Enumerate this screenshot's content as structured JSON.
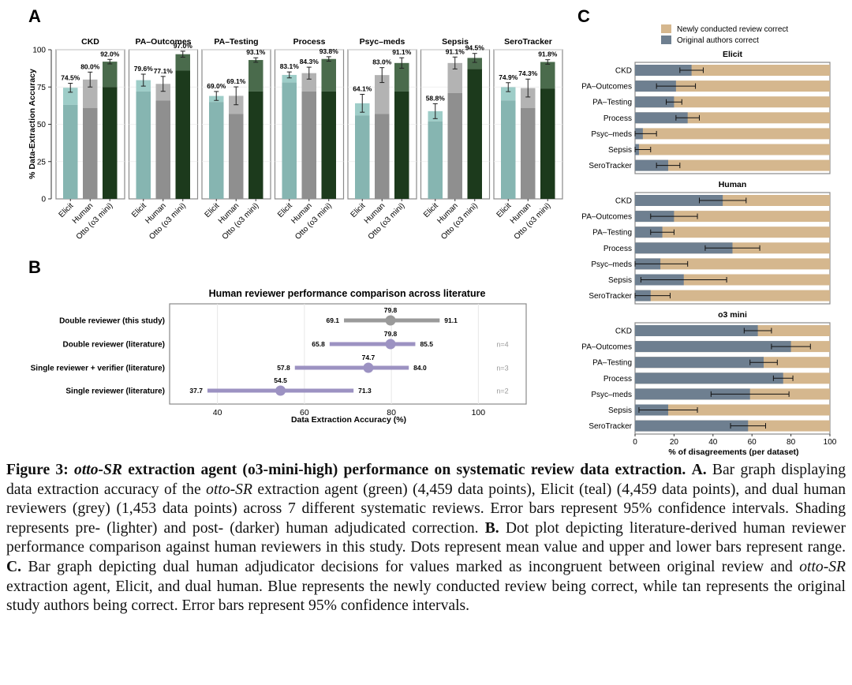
{
  "panel_labels": {
    "a": "A",
    "b": "B",
    "c": "C"
  },
  "colors": {
    "teal_light": "#9ecdc8",
    "teal_dark": "#86b5b1",
    "grey_light": "#b3b3b3",
    "grey_dark": "#8f8f8f",
    "green_light": "#4a6b4c",
    "green_dark": "#1c3a1c",
    "purple": "#9c92c2",
    "grey_dot": "#9a9a9a",
    "tan": "#d5b78e",
    "blue": "#6e7f90"
  },
  "chart_data": [
    {
      "type": "bar",
      "panel": "A",
      "ylabel": "% Data-Extraction Accuracy",
      "ylim": [
        0,
        100
      ],
      "yticks": [
        "0",
        "25",
        "50",
        "75",
        "100"
      ],
      "categories": [
        "Elicit",
        "Human",
        "Otto (o3 mini)"
      ],
      "facets": [
        {
          "name": "CKD",
          "labels": [
            "74.5%",
            "80.0%",
            "92.0%"
          ],
          "values": [
            74.5,
            80.0,
            92.0
          ],
          "pre": [
            63,
            61,
            75
          ],
          "err": [
            3,
            5,
            1.5
          ]
        },
        {
          "name": "PA–Outcomes",
          "labels": [
            "79.6%",
            "77.1%",
            "97.0%"
          ],
          "values": [
            79.6,
            77.1,
            97.0
          ],
          "pre": [
            72,
            66,
            86
          ],
          "err": [
            4,
            5,
            2
          ]
        },
        {
          "name": "PA–Testing",
          "labels": [
            "69.0%",
            "69.1%",
            "93.1%"
          ],
          "values": [
            69.0,
            69.1,
            93.1
          ],
          "pre": [
            65,
            57,
            72
          ],
          "err": [
            3,
            6,
            1.5
          ]
        },
        {
          "name": "Process",
          "labels": [
            "83.1%",
            "84.3%",
            "93.8%"
          ],
          "values": [
            83.1,
            84.3,
            93.8
          ],
          "pre": [
            78,
            72,
            72
          ],
          "err": [
            2,
            4,
            1.5
          ]
        },
        {
          "name": "Psyc–meds",
          "labels": [
            "64.1%",
            "83.0%",
            "91.1%"
          ],
          "values": [
            64.1,
            83.0,
            91.1
          ],
          "pre": [
            56,
            57,
            72
          ],
          "err": [
            6,
            5,
            3.5
          ]
        },
        {
          "name": "Sepsis",
          "labels": [
            "58.8%",
            "91.1%",
            "94.5%"
          ],
          "values": [
            58.8,
            91.1,
            94.5
          ],
          "pre": [
            52,
            71,
            87
          ],
          "err": [
            5,
            4,
            3
          ]
        },
        {
          "name": "SeroTracker",
          "labels": [
            "74.9%",
            "74.3%",
            "91.8%"
          ],
          "values": [
            74.9,
            74.3,
            91.8
          ],
          "pre": [
            66,
            61,
            74
          ],
          "err": [
            3,
            6,
            1.5
          ]
        }
      ]
    },
    {
      "type": "scatter",
      "panel": "B",
      "title": "Human reviewer performance comparison across literature",
      "xlabel": "Data Extraction Accuracy (%)",
      "xlim": [
        29,
        111
      ],
      "xticks": [
        40,
        60,
        80,
        100
      ],
      "rows": [
        {
          "label": "Double reviewer (this study)",
          "mean": 79.8,
          "low": 69.1,
          "high": 91.1,
          "mean_label": "79.8",
          "low_label": "69.1",
          "high_label": "91.1",
          "n": "",
          "color": "grey"
        },
        {
          "label": "Double reviewer (literature)",
          "mean": 79.8,
          "low": 65.8,
          "high": 85.5,
          "mean_label": "79.8",
          "low_label": "65.8",
          "high_label": "85.5",
          "n": "n=4",
          "color": "purple"
        },
        {
          "label": "Single reviewer + verifier (literature)",
          "mean": 74.7,
          "low": 57.8,
          "high": 84.0,
          "mean_label": "74.7",
          "low_label": "57.8",
          "high_label": "84.0",
          "n": "n=3",
          "color": "purple"
        },
        {
          "label": "Single reviewer (literature)",
          "mean": 54.5,
          "low": 37.7,
          "high": 71.3,
          "mean_label": "54.5",
          "low_label": "37.7",
          "high_label": "71.3",
          "n": "n=2",
          "color": "purple"
        }
      ]
    },
    {
      "type": "bar",
      "orientation": "horizontal",
      "stacked": true,
      "panel": "C",
      "legend": [
        "Newly conducted review correct",
        "Original authors correct"
      ],
      "xlabel": "% of disagreements (per dataset)",
      "xlim": [
        0,
        100
      ],
      "xticks": [
        "0",
        "20",
        "40",
        "60",
        "80",
        "100"
      ],
      "categories": [
        "CKD",
        "PA–Outcomes",
        "PA–Testing",
        "Process",
        "Psyc–meds",
        "Sepsis",
        "SeroTracker"
      ],
      "facets": [
        {
          "name": "Elicit",
          "original": [
            29,
            21,
            20,
            27,
            4,
            2,
            17
          ],
          "err": [
            6,
            10,
            4,
            6,
            7,
            6,
            6
          ]
        },
        {
          "name": "Human",
          "original": [
            45,
            20,
            14,
            50,
            13,
            25,
            8
          ],
          "err": [
            12,
            12,
            6,
            14,
            14,
            22,
            10
          ]
        },
        {
          "name": "o3 mini",
          "original": [
            63,
            80,
            66,
            76,
            59,
            17,
            58
          ],
          "err": [
            7,
            10,
            7,
            5,
            20,
            15,
            9
          ]
        }
      ]
    }
  ],
  "caption": {
    "fig_label": "Figure 3:",
    "title_agent": "otto-SR",
    "title_rest": "extraction agent (o3-mini-high) performance on systematic review data extraction.",
    "a_label": "A.",
    "a_text_1": "Bar graph displaying data extraction accuracy of the",
    "a_agent": "otto-SR",
    "a_text_2": "extraction agent (green) (4,459 data points), Elicit (teal) (4,459 data points), and dual human reviewers (grey) (1,453 data points) across 7 different systematic reviews. Error bars represent 95% confidence intervals. Shading represents pre- (lighter) and post- (darker) human adjudicated correction.",
    "b_label": "B.",
    "b_text": "Dot plot depicting literature-derived human reviewer performance comparison against human reviewers in this study. Dots represent mean value and upper and lower bars represent range.",
    "c_label": "C.",
    "c_text_1": "Bar graph depicting dual human adjudicator decisions for values marked as incongruent between original review and",
    "c_agent": "otto-SR",
    "c_text_2": "extraction agent, Elicit, and dual human. Blue represents the newly conducted review being correct, while tan represents the original study authors being correct. Error bars represent 95% confidence intervals."
  }
}
